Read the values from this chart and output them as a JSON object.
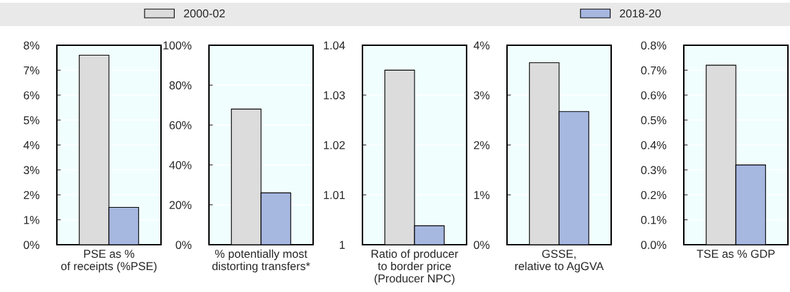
{
  "chart_data": [
    {
      "type": "bar",
      "categories": [
        "PSE as %\nof receipts (%PSE)"
      ],
      "legend": "top",
      "grid": "y",
      "series": [
        {
          "name": "2000-02",
          "color": "#dcdcdc",
          "values": [
            7.6
          ]
        },
        {
          "name": "2018-20",
          "color": "#a6b7e0",
          "values": [
            1.5
          ]
        }
      ],
      "ylim": [
        0,
        8
      ],
      "yticks": [
        {
          "value": 0,
          "label": "0%"
        },
        {
          "value": 1,
          "label": "1%"
        },
        {
          "value": 2,
          "label": "2%"
        },
        {
          "value": 3,
          "label": "3%"
        },
        {
          "value": 4,
          "label": "4%"
        },
        {
          "value": 5,
          "label": "5%"
        },
        {
          "value": 6,
          "label": "6%"
        },
        {
          "value": 7,
          "label": "7%"
        },
        {
          "value": 8,
          "label": "8%"
        }
      ]
    },
    {
      "type": "bar",
      "categories": [
        "% potentially most\ndistorting transfers*"
      ],
      "grid": "y",
      "series": [
        {
          "color": "#dcdcdc",
          "values": [
            68
          ]
        },
        {
          "color": "#a6b7e0",
          "values": [
            26
          ]
        }
      ],
      "ylim": [
        0,
        100
      ],
      "yticks": [
        {
          "value": 0,
          "label": "0%"
        },
        {
          "value": 20,
          "label": "20%"
        },
        {
          "value": 40,
          "label": "40%"
        },
        {
          "value": 60,
          "label": "60%"
        },
        {
          "value": 80,
          "label": "80%"
        },
        {
          "value": 100,
          "label": "100%"
        }
      ]
    },
    {
      "type": "bar",
      "categories": [
        "Ratio of producer\nto border price\n(Producer NPC)"
      ],
      "grid": "y",
      "series": [
        {
          "color": "#dcdcdc",
          "values": [
            1.035
          ]
        },
        {
          "color": "#a6b7e0",
          "values": [
            1.0038
          ]
        }
      ],
      "ylim": [
        1,
        1.04
      ],
      "yticks": [
        1,
        1.01,
        1.02,
        1.03,
        1.04
      ]
    },
    {
      "type": "bar",
      "categories": [
        "GSSE,\nrelative to AgGVA"
      ],
      "grid": "y",
      "series": [
        {
          "color": "#dcdcdc",
          "values": [
            3.65
          ]
        },
        {
          "color": "#a6b7e0",
          "values": [
            2.67
          ]
        }
      ],
      "ylim": [
        0,
        4
      ],
      "yticks": [
        {
          "value": 0,
          "label": "0%"
        },
        {
          "value": 1,
          "label": "1%"
        },
        {
          "value": 2,
          "label": "2%"
        },
        {
          "value": 3,
          "label": "3%"
        },
        {
          "value": 4,
          "label": "4%"
        }
      ]
    },
    {
      "type": "bar",
      "categories": [
        "TSE as % GDP"
      ],
      "grid": "y",
      "series": [
        {
          "color": "#dcdcdc",
          "values": [
            0.72
          ]
        },
        {
          "color": "#a6b7e0",
          "values": [
            0.32
          ]
        }
      ],
      "ylim": [
        0,
        0.8
      ],
      "yticks": [
        {
          "value": 0,
          "label": "0.0%"
        },
        {
          "value": 0.1,
          "label": "0.1%"
        },
        {
          "value": 0.2,
          "label": "0.2%"
        },
        {
          "value": 0.3,
          "label": "0.3%"
        },
        {
          "value": 0.4,
          "label": "0.4%"
        },
        {
          "value": 0.5,
          "label": "0.5%"
        },
        {
          "value": 0.6,
          "label": "0.6%"
        },
        {
          "value": 0.7,
          "label": "0.7%"
        },
        {
          "value": 0.8,
          "label": "0.8%"
        }
      ]
    }
  ]
}
